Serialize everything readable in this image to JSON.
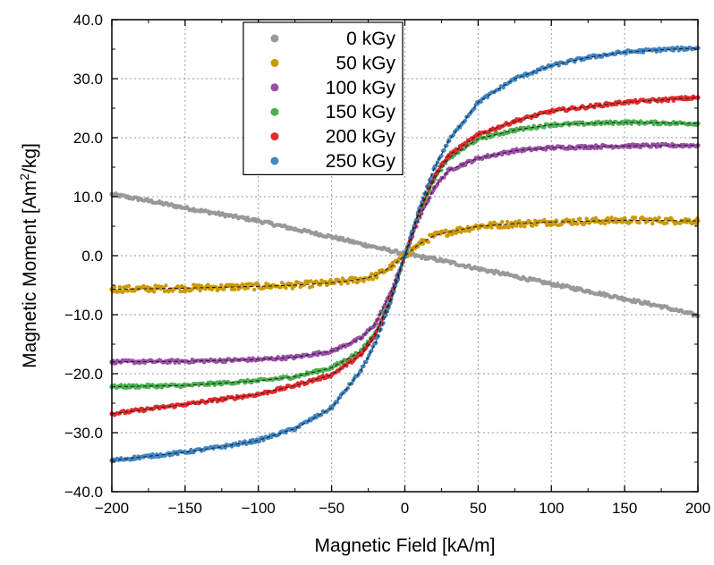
{
  "chart_data": {
    "type": "scatter",
    "title": "",
    "xlabel": "Magnetic Field [kA/m]",
    "ylabel_prefix": "Magnetic Moment [Am",
    "ylabel_sup": "2",
    "ylabel_suffix": "/kg]",
    "xlim": [
      -200,
      200
    ],
    "ylim": [
      -40,
      40
    ],
    "x_ticks": [
      -200,
      -150,
      -100,
      -50,
      0,
      50,
      100,
      150,
      200
    ],
    "x_tick_labels": [
      "−200",
      "−150",
      "−100",
      "−50",
      "0",
      "50",
      "100",
      "150",
      "200"
    ],
    "y_ticks": [
      -40,
      -30,
      -20,
      -10,
      0,
      10,
      20,
      30,
      40
    ],
    "y_tick_labels": [
      "−40.0",
      "−30.0",
      "−20.0",
      "−10.0",
      "0.0",
      "10.0",
      "20.0",
      "30.0",
      "40.0"
    ],
    "grid": true,
    "legend_position": "top-center",
    "fit_line_color": "#222222",
    "series": [
      {
        "name": "0 kGy",
        "color": "#999999",
        "x": [
          -200,
          -175,
          -150,
          -125,
          -100,
          -75,
          -50,
          -25,
          0,
          25,
          50,
          75,
          100,
          125,
          150,
          175,
          200
        ],
        "y": [
          10.4,
          9.3,
          8.1,
          7.0,
          5.9,
          4.5,
          3.2,
          1.7,
          0.3,
          -0.8,
          -2.2,
          -3.5,
          -4.8,
          -6.0,
          -7.3,
          -8.6,
          -10.2
        ],
        "fit": false
      },
      {
        "name": "50 kGy",
        "color": "#cc9900",
        "x": [
          -200,
          -150,
          -100,
          -75,
          -50,
          -30,
          -20,
          -10,
          -5,
          0,
          5,
          10,
          20,
          30,
          50,
          75,
          100,
          150,
          200
        ],
        "y": [
          -5.7,
          -5.5,
          -5.2,
          -5.0,
          -4.6,
          -4.0,
          -3.4,
          -2.0,
          -1.0,
          0.0,
          1.0,
          2.0,
          3.4,
          4.0,
          5.0,
          5.4,
          5.7,
          6.0,
          5.9
        ],
        "fit": true
      },
      {
        "name": "100 kGy",
        "color": "#9b4ea8",
        "x": [
          -200,
          -150,
          -100,
          -75,
          -50,
          -30,
          -20,
          -10,
          -5,
          0,
          5,
          10,
          20,
          30,
          50,
          75,
          100,
          150,
          200
        ],
        "y": [
          -18.0,
          -17.9,
          -17.6,
          -17.2,
          -16.2,
          -14.0,
          -11.5,
          -6.5,
          -3.3,
          0.0,
          3.3,
          6.5,
          11.5,
          14.5,
          16.5,
          17.8,
          18.3,
          18.6,
          18.7
        ],
        "fit": true
      },
      {
        "name": "150 kGy",
        "color": "#4cb050",
        "x": [
          -200,
          -150,
          -100,
          -75,
          -50,
          -30,
          -20,
          -10,
          -5,
          0,
          5,
          10,
          20,
          30,
          50,
          75,
          100,
          150,
          200
        ],
        "y": [
          -22.2,
          -22.0,
          -21.2,
          -20.5,
          -19.0,
          -16.2,
          -13.0,
          -7.5,
          -3.8,
          0.0,
          3.8,
          7.5,
          13.0,
          16.5,
          19.8,
          21.3,
          22.2,
          22.6,
          22.4
        ],
        "fit": true
      },
      {
        "name": "200 kGy",
        "color": "#e32b2b",
        "x": [
          -200,
          -150,
          -100,
          -75,
          -50,
          -30,
          -20,
          -10,
          -5,
          0,
          5,
          10,
          20,
          30,
          50,
          75,
          100,
          150,
          200
        ],
        "y": [
          -26.8,
          -25.2,
          -23.5,
          -22.0,
          -20.2,
          -16.8,
          -13.5,
          -7.6,
          -3.9,
          0.0,
          3.9,
          7.6,
          13.5,
          17.0,
          20.5,
          22.8,
          24.5,
          26.0,
          26.8
        ],
        "fit": true
      },
      {
        "name": "250 kGy",
        "color": "#3f86c6",
        "x": [
          -200,
          -175,
          -150,
          -125,
          -100,
          -75,
          -50,
          -30,
          -20,
          -10,
          -5,
          0,
          5,
          10,
          20,
          30,
          50,
          75,
          100,
          125,
          150,
          175,
          200
        ],
        "y": [
          -34.7,
          -34.0,
          -33.3,
          -32.4,
          -31.3,
          -29.3,
          -25.8,
          -19.5,
          -14.8,
          -8.0,
          -4.1,
          0.0,
          4.1,
          8.0,
          14.8,
          19.5,
          26.0,
          30.0,
          32.2,
          33.6,
          34.5,
          34.9,
          35.2
        ],
        "fit": true
      }
    ]
  }
}
